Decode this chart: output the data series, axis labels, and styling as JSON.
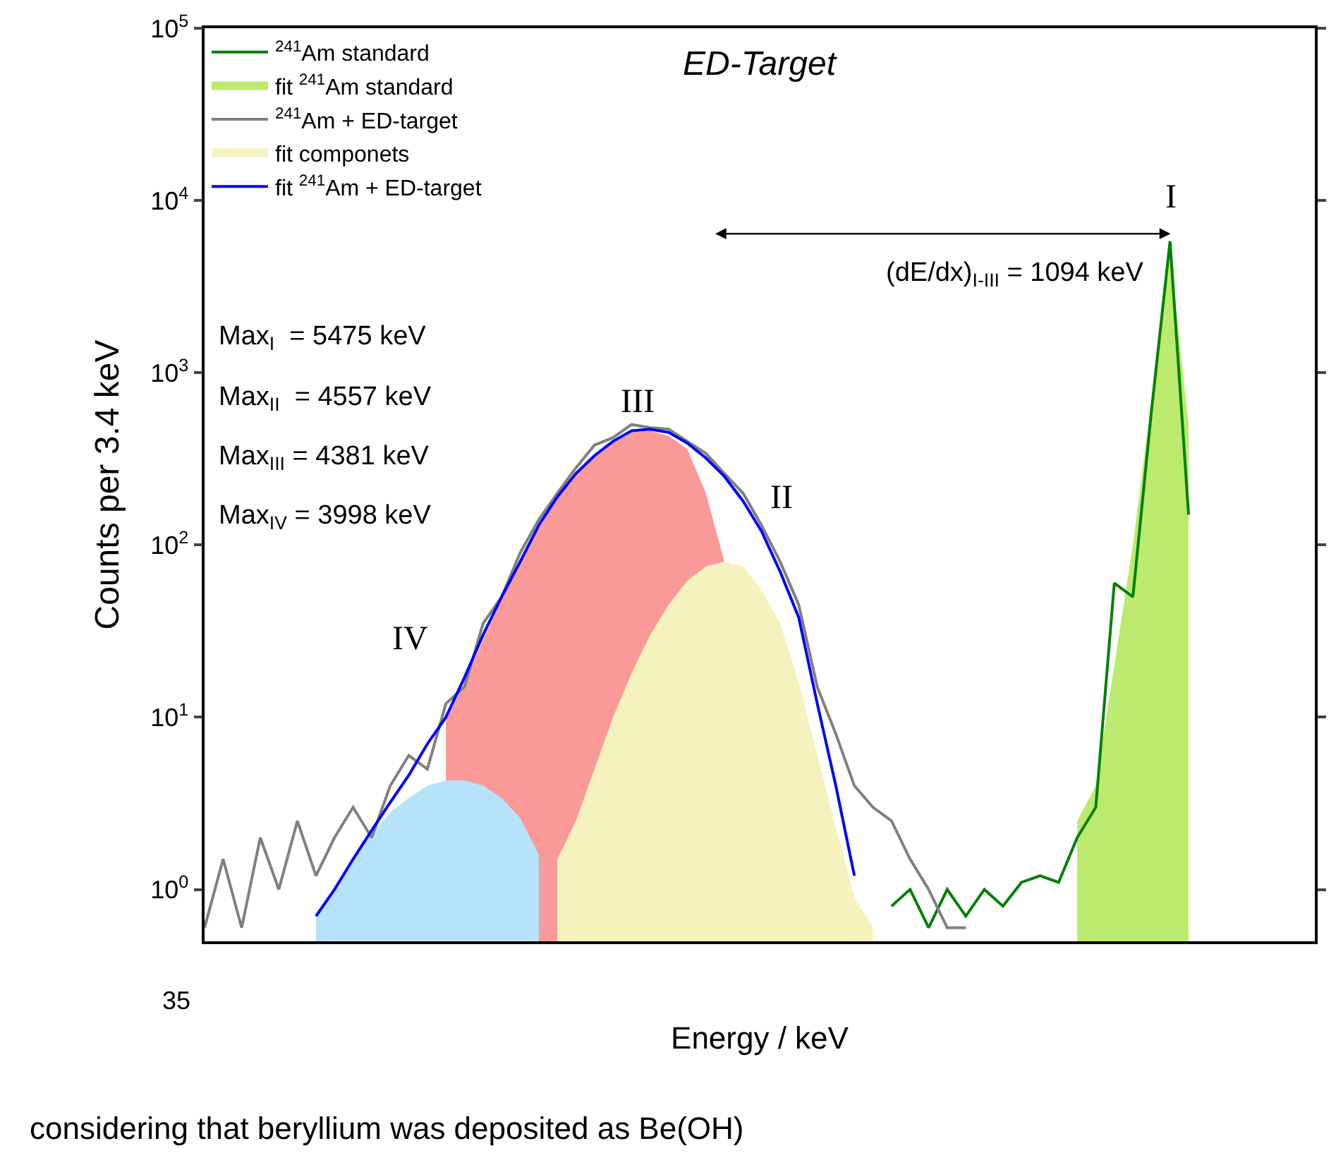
{
  "chart_data": {
    "type": "line",
    "title": "ED-Target",
    "xlabel": "Energy / keV",
    "ylabel": "Counts per 3.4 keV",
    "categories": [
      null,
      null,
      null,
      null,
      null,
      null,
      null,
      null,
      null,
      null,
      null,
      null,
      null,
      null,
      null,
      null,
      null,
      null,
      null,
      null,
      null,
      null,
      null,
      null,
      null,
      null,
      null,
      null,
      null,
      null,
      null,
      null,
      null,
      null,
      null,
      null,
      null,
      null,
      null,
      null,
      null,
      null,
      null,
      null,
      null,
      null,
      null,
      null,
      null,
      null,
      null,
      null,
      null,
      null,
      null,
      null,
      null,
      null,
      null,
      null
    ],
    "series": [
      {
        "name": "$^{241}$Am standard",
        "color": "#008000",
        "values": [
          null,
          null,
          null,
          null,
          null,
          null,
          null,
          null,
          null,
          null,
          null,
          null,
          null,
          null,
          null,
          null,
          null,
          null,
          null,
          null,
          null,
          null,
          null,
          null,
          null,
          null,
          null,
          null,
          null,
          null,
          null,
          null,
          null,
          null,
          null,
          null,
          null,
          0.8,
          1,
          0.6,
          1,
          0.7,
          1,
          0.8,
          1.1,
          1.2,
          1.1,
          2,
          3,
          60,
          50,
          600,
          5800,
          150,
          null,
          null,
          null,
          null,
          null,
          null
        ]
      },
      {
        "name": "fit $^{241}$Am standard",
        "type": "area",
        "color": "#bbea6e",
        "values": [
          null,
          null,
          null,
          null,
          null,
          null,
          null,
          null,
          null,
          null,
          null,
          null,
          null,
          null,
          null,
          null,
          null,
          null,
          null,
          null,
          null,
          null,
          null,
          null,
          null,
          null,
          null,
          null,
          null,
          null,
          null,
          null,
          null,
          null,
          null,
          null,
          null,
          null,
          null,
          null,
          null,
          null,
          null,
          null,
          null,
          null,
          null,
          2.5,
          4,
          20,
          100,
          700,
          5000,
          500,
          null,
          null,
          null,
          null,
          null,
          null
        ]
      },
      {
        "name": "$^{241}$Am + ED-target",
        "color": "#808080",
        "values": [
          0.6,
          1.5,
          0.6,
          2,
          1,
          2.5,
          1.2,
          2,
          3,
          2,
          4,
          6,
          5,
          12,
          15,
          35,
          50,
          90,
          140,
          200,
          280,
          380,
          420,
          500,
          480,
          470,
          400,
          340,
          260,
          200,
          130,
          80,
          45,
          15,
          8,
          4,
          3,
          2.5,
          1.5,
          1,
          0.6,
          0.6,
          null,
          null,
          null,
          null,
          null,
          null,
          null,
          null,
          null,
          null,
          null,
          null,
          null,
          null,
          null,
          null,
          null,
          null
        ]
      },
      {
        "type": "area",
        "color": "#f99a99",
        "values": [
          null,
          null,
          null,
          null,
          null,
          null,
          null,
          null,
          null,
          null,
          null,
          null,
          null,
          9.5,
          16,
          28,
          48,
          78,
          125,
          185,
          255,
          325,
          395,
          450,
          460,
          430,
          360,
          200,
          80,
          null,
          null,
          null,
          null,
          null,
          null,
          null,
          null,
          null,
          null,
          null,
          null,
          null,
          null,
          null,
          null,
          null,
          null,
          null,
          null,
          null,
          null,
          null,
          null,
          null,
          null,
          null,
          null,
          null,
          null,
          null
        ]
      },
      {
        "type": "area",
        "color": "#b6e3f9",
        "values": [
          null,
          null,
          null,
          null,
          null,
          null,
          0.7,
          1,
          1.5,
          2.1,
          2.8,
          3.4,
          4,
          4.3,
          4.3,
          4,
          3.4,
          2.6,
          1.6,
          null,
          null,
          null,
          null,
          null,
          null,
          null,
          null,
          null,
          null,
          null,
          null,
          null,
          null,
          null,
          null,
          null,
          null,
          null,
          null,
          null,
          null,
          null,
          null,
          null,
          null,
          null,
          null,
          null,
          null,
          null,
          null,
          null,
          null,
          null,
          null,
          null,
          null,
          null,
          null,
          null
        ]
      },
      {
        "name": "fit componets",
        "type": "area",
        "color": "#f6f2bd",
        "values": [
          null,
          null,
          null,
          null,
          null,
          null,
          null,
          null,
          null,
          null,
          null,
          null,
          null,
          null,
          null,
          null,
          null,
          null,
          null,
          1.5,
          2.5,
          5,
          10,
          18,
          30,
          45,
          62,
          75,
          80,
          75,
          55,
          35,
          16,
          6,
          2.3,
          0.9,
          0.6,
          null,
          null,
          null,
          null,
          null,
          null,
          null,
          null,
          null,
          null,
          null,
          null,
          null,
          null,
          null,
          null,
          null,
          null,
          null,
          null,
          null,
          null,
          null
        ]
      },
      {
        "name": "fit $^{241}$Am + ED-target",
        "color": "#0000ff",
        "values": [
          null,
          null,
          null,
          null,
          null,
          null,
          0.7,
          1,
          1.5,
          2.2,
          3.2,
          4.6,
          7,
          10,
          17,
          30,
          50,
          80,
          130,
          190,
          260,
          330,
          400,
          460,
          470,
          450,
          390,
          320,
          250,
          180,
          120,
          70,
          38,
          12,
          4,
          1.2,
          null,
          null,
          null,
          null,
          null,
          null,
          null,
          null,
          null,
          null,
          null,
          null,
          null,
          null,
          null,
          null,
          null,
          null,
          null,
          null,
          null,
          null,
          null,
          null
        ]
      }
    ],
    "log": true,
    "ylim": [
      0.5,
      100000
    ],
    "yticks": [
      {
        "value": 1,
        "label": "10$^{0}$"
      },
      {
        "value": 10,
        "label": "10$^{1}$"
      },
      {
        "value": 100,
        "label": "10$^{2}$"
      },
      {
        "value": 1000,
        "label": "10$^{3}$"
      },
      {
        "value": 10000,
        "label": "10$^{4}$"
      },
      {
        "value": 100000,
        "label": "10$^{5}$"
      }
    ],
    "tick_labels": "y",
    "legend": "top left",
    "marker": "none",
    "line_style": "solid",
    "annotations": [
      "I",
      "II",
      "III",
      "IV",
      "Max$_{I}$  = 5475 keV",
      "Max$_{II}$  = 4557 keV",
      "Max$_{III}$ = 4381 keV",
      "Max$_{IV}$ = 3998 keV",
      "(dE/dx)$_{I-III}$ = 1094 keV",
      "35",
      "considering that beryllium was deposited as Be(OH)"
    ]
  }
}
